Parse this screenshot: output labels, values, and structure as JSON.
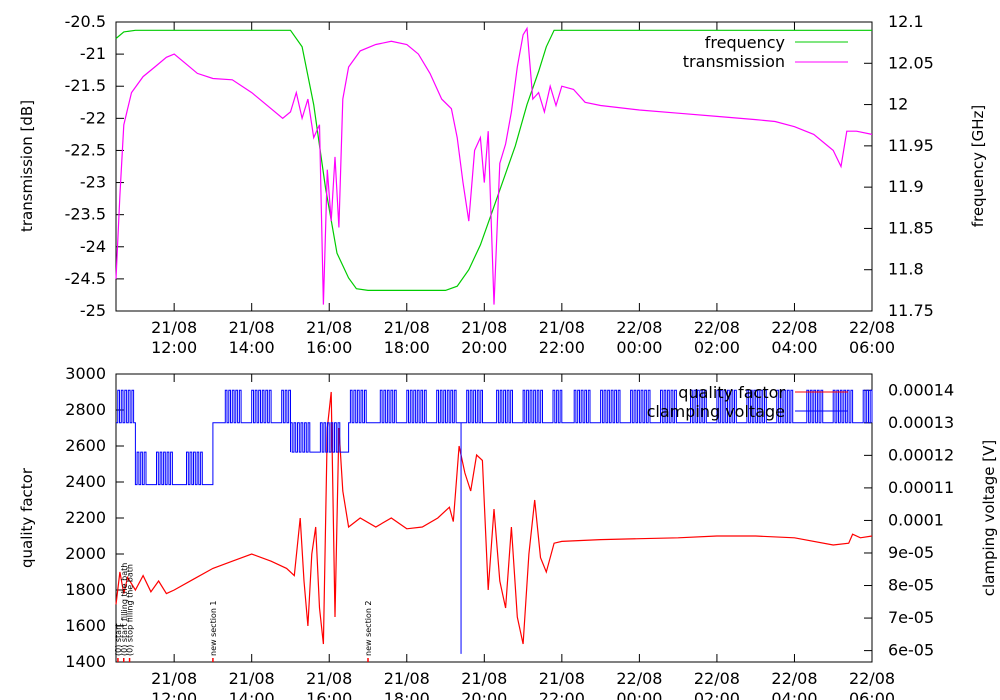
{
  "chart_data": [
    {
      "type": "line",
      "ylabel": "transmission [dB]",
      "y2label": "frequency [GHz]",
      "xlim_hours": [
        10.5,
        30
      ],
      "ylim": [
        -25,
        -20.5
      ],
      "y2lim": [
        11.75,
        12.1
      ],
      "yticks": [
        "-20.5",
        "-21",
        "-21.5",
        "-22",
        "-22.5",
        "-23",
        "-23.5",
        "-24",
        "-24.5",
        "-25"
      ],
      "y2ticks": [
        "12.1",
        "12.05",
        "12",
        "11.95",
        "11.9",
        "11.85",
        "11.8",
        "11.75"
      ],
      "xticks": [
        {
          "date": "21/08",
          "time": "12:00"
        },
        {
          "date": "21/08",
          "time": "14:00"
        },
        {
          "date": "21/08",
          "time": "16:00"
        },
        {
          "date": "21/08",
          "time": "18:00"
        },
        {
          "date": "21/08",
          "time": "20:00"
        },
        {
          "date": "21/08",
          "time": "22:00"
        },
        {
          "date": "22/08",
          "time": "00:00"
        },
        {
          "date": "22/08",
          "time": "02:00"
        },
        {
          "date": "22/08",
          "time": "04:00"
        },
        {
          "date": "22/08",
          "time": "06:00"
        }
      ],
      "legend_position": "top-right",
      "series": [
        {
          "name": "frequency",
          "axis": "y2",
          "color": "#00cc00",
          "points": [
            [
              10.5,
              12.08
            ],
            [
              10.7,
              12.088
            ],
            [
              11.0,
              12.09
            ],
            [
              14,
              12.09
            ],
            [
              15.0,
              12.09
            ],
            [
              15.3,
              12.07
            ],
            [
              15.6,
              12.0
            ],
            [
              15.9,
              11.9
            ],
            [
              16.2,
              11.82
            ],
            [
              16.5,
              11.79
            ],
            [
              16.7,
              11.777
            ],
            [
              17,
              11.775
            ],
            [
              18,
              11.775
            ],
            [
              19.0,
              11.775
            ],
            [
              19.3,
              11.78
            ],
            [
              19.6,
              11.8
            ],
            [
              19.9,
              11.83
            ],
            [
              20.2,
              11.87
            ],
            [
              20.5,
              11.91
            ],
            [
              20.8,
              11.95
            ],
            [
              21.1,
              12.0
            ],
            [
              21.4,
              12.04
            ],
            [
              21.6,
              12.07
            ],
            [
              21.8,
              12.09
            ],
            [
              22,
              12.09
            ],
            [
              30,
              12.09
            ]
          ]
        },
        {
          "name": "transmission",
          "axis": "y",
          "color": "#ff00ff",
          "points": [
            [
              10.5,
              -24.5
            ],
            [
              10.6,
              -23.2
            ],
            [
              10.7,
              -22.1
            ],
            [
              10.9,
              -21.6
            ],
            [
              11.2,
              -21.35
            ],
            [
              11.5,
              -21.2
            ],
            [
              11.8,
              -21.05
            ],
            [
              12.0,
              -21.0
            ],
            [
              12.3,
              -21.15
            ],
            [
              12.6,
              -21.3
            ],
            [
              13.0,
              -21.38
            ],
            [
              13.5,
              -21.4
            ],
            [
              14.0,
              -21.6
            ],
            [
              14.5,
              -21.85
            ],
            [
              14.8,
              -22.0
            ],
            [
              15.0,
              -21.9
            ],
            [
              15.15,
              -21.6
            ],
            [
              15.3,
              -22.0
            ],
            [
              15.45,
              -21.7
            ],
            [
              15.6,
              -22.3
            ],
            [
              15.75,
              -22.1
            ],
            [
              15.85,
              -24.9
            ],
            [
              15.95,
              -22.8
            ],
            [
              16.05,
              -23.6
            ],
            [
              16.15,
              -22.6
            ],
            [
              16.25,
              -23.7
            ],
            [
              16.35,
              -21.7
            ],
            [
              16.5,
              -21.2
            ],
            [
              16.8,
              -20.95
            ],
            [
              17.2,
              -20.85
            ],
            [
              17.6,
              -20.8
            ],
            [
              18.0,
              -20.85
            ],
            [
              18.3,
              -21.0
            ],
            [
              18.6,
              -21.3
            ],
            [
              18.9,
              -21.7
            ],
            [
              19.15,
              -21.85
            ],
            [
              19.3,
              -22.3
            ],
            [
              19.45,
              -23.0
            ],
            [
              19.6,
              -23.6
            ],
            [
              19.75,
              -22.5
            ],
            [
              19.9,
              -22.3
            ],
            [
              20.0,
              -23.0
            ],
            [
              20.1,
              -22.2
            ],
            [
              20.25,
              -24.9
            ],
            [
              20.4,
              -22.7
            ],
            [
              20.55,
              -22.4
            ],
            [
              20.7,
              -21.9
            ],
            [
              20.85,
              -21.2
            ],
            [
              21.0,
              -20.7
            ],
            [
              21.1,
              -20.6
            ],
            [
              21.25,
              -21.7
            ],
            [
              21.4,
              -21.6
            ],
            [
              21.55,
              -21.9
            ],
            [
              21.7,
              -21.5
            ],
            [
              21.85,
              -21.8
            ],
            [
              22.0,
              -21.5
            ],
            [
              22.3,
              -21.55
            ],
            [
              22.6,
              -21.75
            ],
            [
              23.0,
              -21.8
            ],
            [
              24,
              -21.87
            ],
            [
              25,
              -21.92
            ],
            [
              26,
              -21.97
            ],
            [
              27,
              -22.02
            ],
            [
              27.5,
              -22.05
            ],
            [
              28,
              -22.13
            ],
            [
              28.5,
              -22.25
            ],
            [
              29.0,
              -22.5
            ],
            [
              29.2,
              -22.75
            ],
            [
              29.35,
              -22.2
            ],
            [
              29.6,
              -22.2
            ],
            [
              30,
              -22.25
            ]
          ]
        }
      ]
    },
    {
      "type": "line",
      "ylabel": "quality factor",
      "y2label": "clamping voltage [V]",
      "xlim_hours": [
        10.5,
        30
      ],
      "ylim": [
        1400,
        3000
      ],
      "y2lim": [
        5.65e-05,
        0.000145
      ],
      "yticks": [
        "3000",
        "2800",
        "2600",
        "2400",
        "2200",
        "2000",
        "1800",
        "1600",
        "1400"
      ],
      "y2ticks": [
        "0.00014",
        "0.00013",
        "0.00012",
        "0.00011",
        "0.0001",
        "9e-05",
        "8e-05",
        "7e-05",
        "6e-05"
      ],
      "xticks": [
        {
          "date": "21/08",
          "time": "12:00"
        },
        {
          "date": "21/08",
          "time": "14:00"
        },
        {
          "date": "21/08",
          "time": "16:00"
        },
        {
          "date": "21/08",
          "time": "18:00"
        },
        {
          "date": "21/08",
          "time": "20:00"
        },
        {
          "date": "21/08",
          "time": "22:00"
        },
        {
          "date": "22/08",
          "time": "00:00"
        },
        {
          "date": "22/08",
          "time": "02:00"
        },
        {
          "date": "22/08",
          "time": "04:00"
        },
        {
          "date": "22/08",
          "time": "06:00"
        }
      ],
      "legend_position": "top-right",
      "series": [
        {
          "name": "quality factor",
          "axis": "y",
          "color": "#ff0000",
          "points": [
            [
              10.5,
              1720
            ],
            [
              10.6,
              1900
            ],
            [
              10.7,
              1780
            ],
            [
              10.8,
              1870
            ],
            [
              11.0,
              1800
            ],
            [
              11.2,
              1880
            ],
            [
              11.4,
              1790
            ],
            [
              11.6,
              1850
            ],
            [
              11.8,
              1780
            ],
            [
              12.0,
              1800
            ],
            [
              12.5,
              1860
            ],
            [
              13.0,
              1920
            ],
            [
              13.5,
              1960
            ],
            [
              14.0,
              2000
            ],
            [
              14.5,
              1960
            ],
            [
              14.9,
              1920
            ],
            [
              15.1,
              1880
            ],
            [
              15.25,
              2200
            ],
            [
              15.35,
              1850
            ],
            [
              15.45,
              1600
            ],
            [
              15.55,
              2000
            ],
            [
              15.65,
              2150
            ],
            [
              15.75,
              1700
            ],
            [
              15.85,
              1500
            ],
            [
              15.95,
              2700
            ],
            [
              16.05,
              2900
            ],
            [
              16.15,
              1650
            ],
            [
              16.25,
              2700
            ],
            [
              16.35,
              2350
            ],
            [
              16.5,
              2150
            ],
            [
              16.8,
              2200
            ],
            [
              17.2,
              2150
            ],
            [
              17.6,
              2200
            ],
            [
              18.0,
              2140
            ],
            [
              18.4,
              2150
            ],
            [
              18.8,
              2200
            ],
            [
              19.1,
              2260
            ],
            [
              19.2,
              2180
            ],
            [
              19.35,
              2600
            ],
            [
              19.5,
              2450
            ],
            [
              19.65,
              2350
            ],
            [
              19.8,
              2550
            ],
            [
              19.95,
              2520
            ],
            [
              20.1,
              1800
            ],
            [
              20.25,
              2250
            ],
            [
              20.4,
              1850
            ],
            [
              20.55,
              1700
            ],
            [
              20.7,
              2150
            ],
            [
              20.85,
              1650
            ],
            [
              21.0,
              1500
            ],
            [
              21.15,
              2000
            ],
            [
              21.3,
              2300
            ],
            [
              21.45,
              1980
            ],
            [
              21.6,
              1900
            ],
            [
              21.8,
              2060
            ],
            [
              22.0,
              2070
            ],
            [
              23,
              2080
            ],
            [
              24,
              2085
            ],
            [
              25,
              2090
            ],
            [
              26,
              2100
            ],
            [
              27,
              2100
            ],
            [
              28,
              2090
            ],
            [
              29,
              2050
            ],
            [
              29.4,
              2060
            ],
            [
              29.5,
              2110
            ],
            [
              29.7,
              2090
            ],
            [
              30,
              2100
            ]
          ]
        },
        {
          "name": "clamping voltage",
          "axis": "y2",
          "color": "#0000ff",
          "levels": [
            0.000111,
            0.000121,
            0.00013,
            0.00014
          ],
          "segments": [
            [
              10.5,
              11.0,
              0.00013
            ],
            [
              11.0,
              13.0,
              0.000115
            ],
            [
              13.0,
              15.0,
              0.00013
            ],
            [
              15.0,
              16.5,
              0.000128
            ],
            [
              16.5,
              19.5,
              0.000135
            ],
            [
              19.5,
              22.0,
              0.000135
            ],
            [
              22.0,
              30,
              0.00013
            ]
          ],
          "spike": [
            19.4,
            5.9e-05
          ]
        },
        {
          "name": "annotations",
          "labels": [
            {
              "x": 10.55,
              "text": "(0) start"
            },
            {
              "x": 10.7,
              "text": "(0) start filling the bath"
            },
            {
              "x": 10.85,
              "text": "(0) stop filling the bath"
            },
            {
              "x": 13.0,
              "text": "new section 1"
            },
            {
              "x": 17.0,
              "text": "new section 2"
            }
          ]
        }
      ]
    }
  ]
}
